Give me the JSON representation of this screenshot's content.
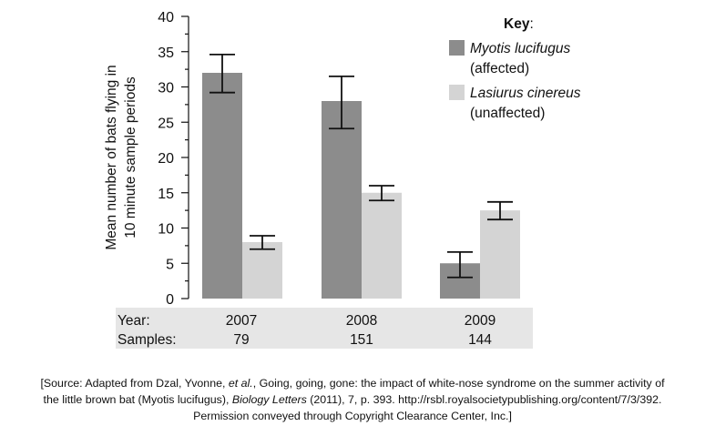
{
  "chart_data": {
    "type": "bar",
    "categories": [
      "2007",
      "2008",
      "2009"
    ],
    "series": [
      {
        "name": "Myotis lucifugus",
        "name_note": "(affected)",
        "color": "#8c8c8c",
        "values": [
          32,
          28,
          5
        ],
        "error_low": [
          29.2,
          24.1,
          3.0
        ],
        "error_high": [
          34.6,
          31.5,
          6.6
        ]
      },
      {
        "name": "Lasiurus cinereus",
        "name_note": "(unaffected)",
        "color": "#d4d4d4",
        "values": [
          8,
          15,
          12.5
        ],
        "error_low": [
          7.0,
          13.9,
          11.2
        ],
        "error_high": [
          8.9,
          16.0,
          13.7
        ]
      }
    ],
    "ylabel_line1": "Mean number of bats flying in",
    "ylabel_line2": "10 minute sample periods",
    "ylim": [
      0,
      40
    ],
    "yticks": [
      0,
      5,
      10,
      15,
      20,
      25,
      30,
      35,
      40
    ],
    "legend_title": "Key",
    "legend_colon": ":",
    "legend_position": "top-right",
    "grid": false,
    "footer": {
      "year_label": "Year:",
      "samples_label": "Samples:",
      "samples": [
        "79",
        "151",
        "144"
      ],
      "background": "#e6e6e6"
    }
  },
  "source": {
    "part1": "[Source: Adapted from Dzal, Yvonne, ",
    "etal": "et al.",
    "part2": ", Going, going, gone: the impact of white-nose syndrome on the summer activity of",
    "part3": "the little brown bat (Myotis lucifugus), ",
    "journal": "Biology Letters",
    "part4": " (2011), 7, p. 393. http://rsbl.royalsocietypublishing.org/content/7/3/392.",
    "part5": "Permission conveyed through Copyright Clearance Center, Inc.]"
  }
}
